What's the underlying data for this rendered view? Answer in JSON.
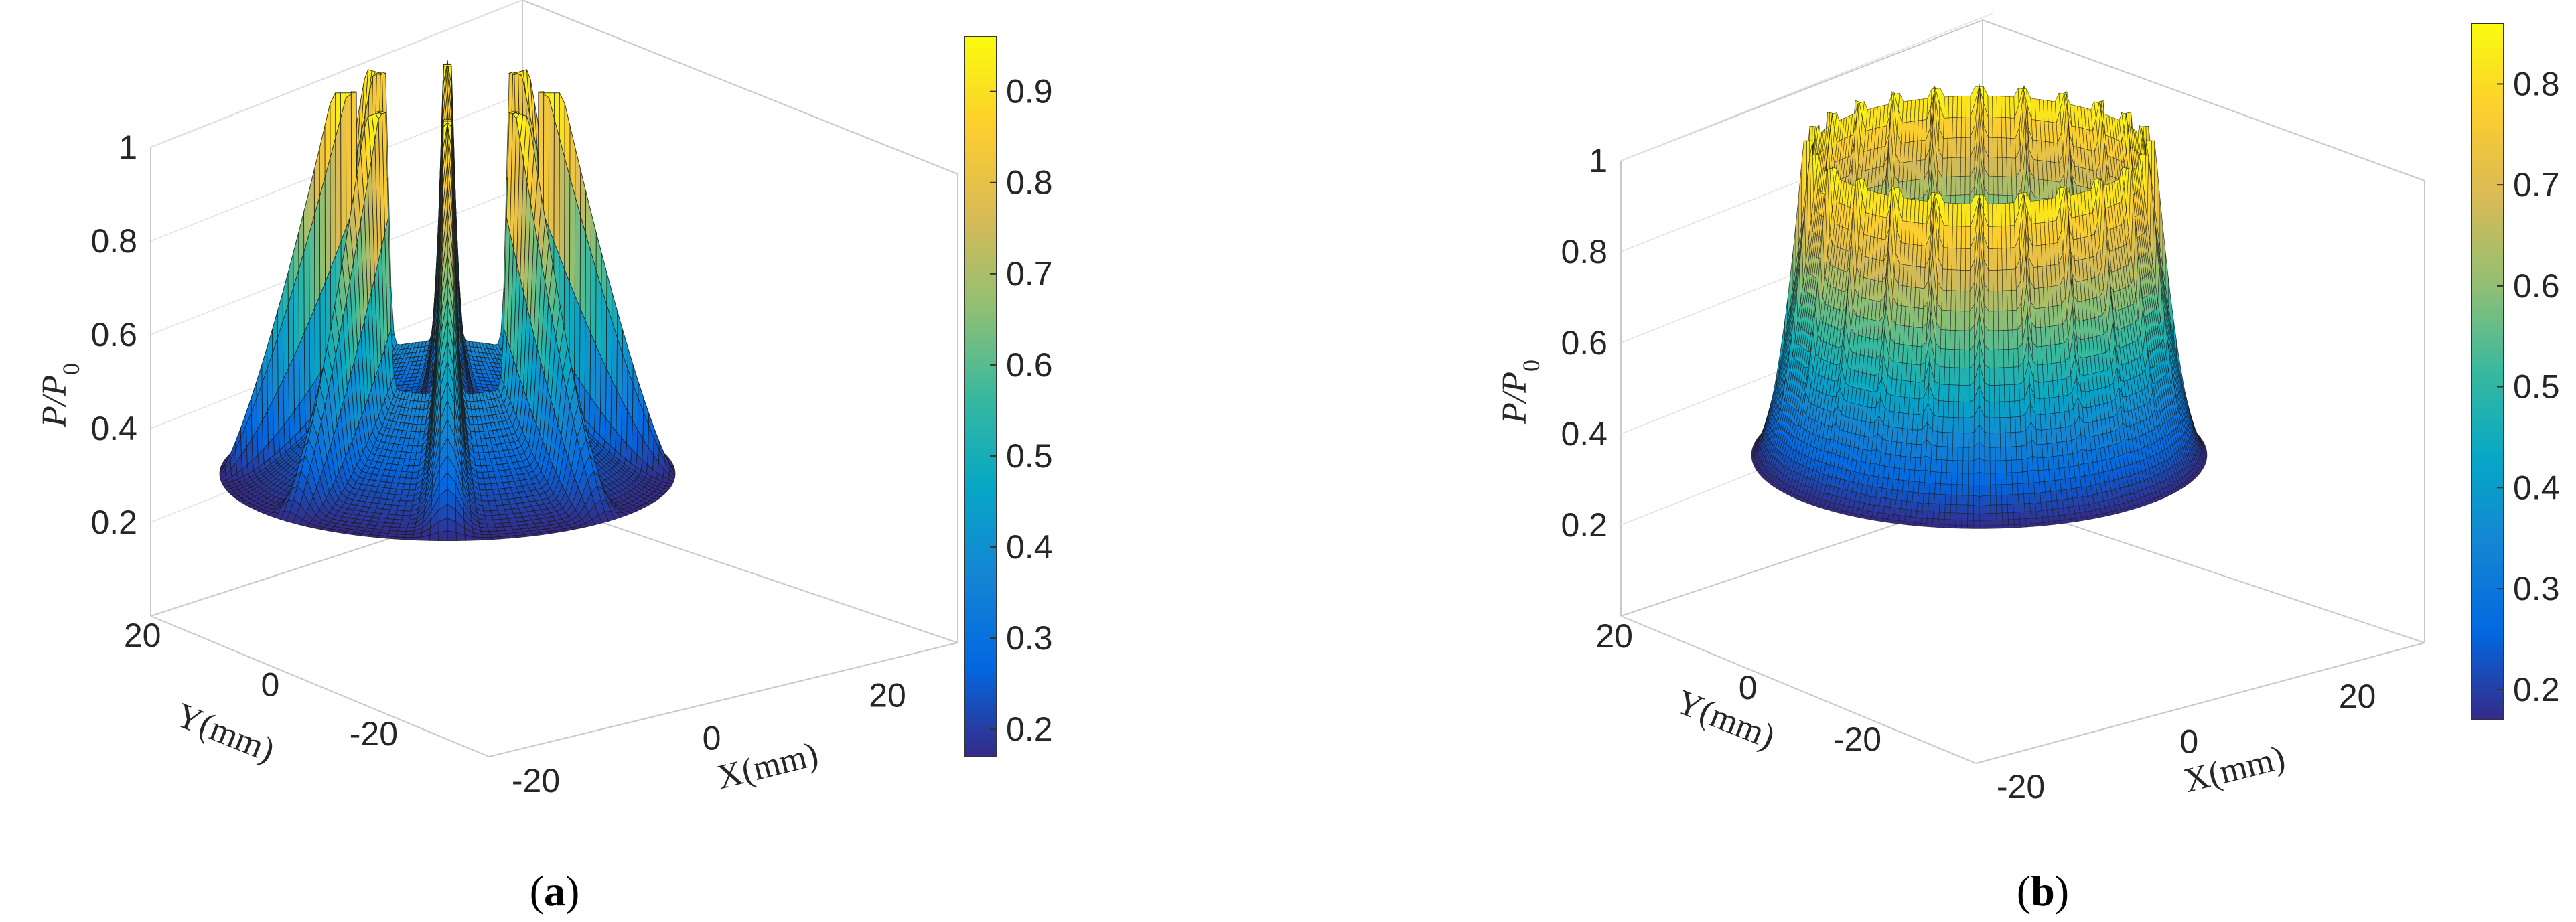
{
  "chart_data": [
    {
      "type": "surface",
      "panel": "(a)",
      "panel_letter": "a",
      "xlabel": "X(mm)",
      "ylabel": "Y(mm)",
      "zlabel": "P/P0",
      "zlabel_base": "P/P",
      "zlabel_sub": "0",
      "xticks": [
        -20,
        0,
        20
      ],
      "yticks": [
        20,
        0,
        -20
      ],
      "zticks": [
        0.2,
        0.4,
        0.6,
        0.8,
        1
      ],
      "ztick_labels": [
        "0.2",
        "0.4",
        "0.6",
        "0.8",
        "1"
      ],
      "zlim": [
        0,
        1
      ],
      "peaks": 8,
      "ring_radius_mm": [
        12,
        30
      ],
      "surface_min": 0.17,
      "surface_max": 0.96,
      "colormap": "parula",
      "colorbar": {
        "ticks": [
          0.2,
          0.3,
          0.4,
          0.5,
          0.6,
          0.7,
          0.8,
          0.9
        ],
        "labels": [
          "0.2",
          "0.3",
          "0.4",
          "0.5",
          "0.6",
          "0.7",
          "0.8",
          "0.9"
        ],
        "min": 0.17,
        "max": 0.96
      }
    },
    {
      "type": "surface",
      "panel": "(b)",
      "panel_letter": "b",
      "xlabel": "X(mm)",
      "ylabel": "Y(mm)",
      "zlabel": "P/P0",
      "zlabel_base": "P/P",
      "zlabel_sub": "0",
      "xticks": [
        -20,
        0,
        20
      ],
      "yticks": [
        20,
        0,
        -20
      ],
      "zticks": [
        0.2,
        0.4,
        0.6,
        0.8,
        1
      ],
      "ztick_labels": [
        "0.2",
        "0.4",
        "0.6",
        "0.8",
        "1"
      ],
      "zlim": [
        0,
        1
      ],
      "peaks": 24,
      "ring_radius_mm": [
        22,
        30
      ],
      "surface_min": 0.17,
      "surface_max": 0.86,
      "colormap": "parula",
      "colorbar": {
        "ticks": [
          0.2,
          0.3,
          0.4,
          0.5,
          0.6,
          0.7,
          0.8
        ],
        "labels": [
          "0.2",
          "0.3",
          "0.4",
          "0.5",
          "0.6",
          "0.7",
          "0.8"
        ],
        "min": 0.17,
        "max": 0.86
      }
    }
  ]
}
